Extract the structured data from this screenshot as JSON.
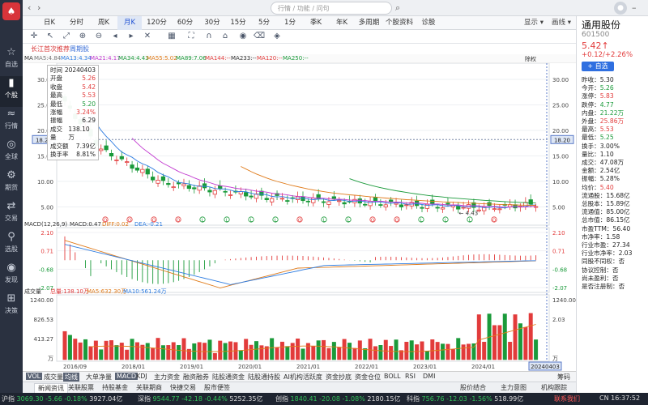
{
  "sidebar": {
    "logo_glyph": "♠",
    "items": [
      {
        "icon": "☆",
        "label": "自选"
      },
      {
        "icon": "▮",
        "label": "个股"
      },
      {
        "icon": "≈",
        "label": "行情"
      },
      {
        "icon": "◎",
        "label": "全球"
      },
      {
        "icon": "⚙",
        "label": "期货"
      },
      {
        "icon": "⇄",
        "label": "交易"
      },
      {
        "icon": "⚲",
        "label": "选股"
      },
      {
        "icon": "◉",
        "label": "发现"
      },
      {
        "icon": "⊞",
        "label": "决策"
      }
    ]
  },
  "topbar": {
    "search_placeholder": "行情 / 功能 / 问句"
  },
  "periods": [
    "日K",
    "分时",
    "周K",
    "月K",
    "120分",
    "60分",
    "30分",
    "15分",
    "5分",
    "1分",
    "季K",
    "年K",
    "多周期",
    "个股资料",
    "诊股"
  ],
  "period_active": "月K",
  "period_right": [
    "显示",
    "画线"
  ],
  "subtabs": [
    "长江首次推荐",
    "周期股"
  ],
  "ma_legend": [
    {
      "text": "MA",
      "color": "#333333"
    },
    {
      "text": "MA5:4.84",
      "color": "#777777"
    },
    {
      "text": "MA13:4.34",
      "color": "#2f7de1"
    },
    {
      "text": "MA21:4.17",
      "color": "#c23ad0"
    },
    {
      "text": "MA34:4.43",
      "color": "#1a9a3a"
    },
    {
      "text": "MA55:5.02",
      "color": "#e07b1a"
    },
    {
      "text": "MA89:7.06",
      "color": "#1a9a3a"
    },
    {
      "text": "MA144:--",
      "color": "#e23b3b"
    },
    {
      "text": "MA233:--",
      "color": "#333333"
    },
    {
      "text": "MA120:--",
      "color": "#e23b3b"
    },
    {
      "text": "MA250:--",
      "color": "#1a9a3a"
    }
  ],
  "fuquan": "除权",
  "tooltip": {
    "rows": [
      {
        "k": "时间",
        "v": "20240403",
        "c": ""
      },
      {
        "k": "开盘",
        "v": "5.26",
        "c": "red"
      },
      {
        "k": "收盘",
        "v": "5.42",
        "c": "red"
      },
      {
        "k": "最高",
        "v": "5.53",
        "c": "red"
      },
      {
        "k": "最低",
        "v": "5.20",
        "c": "grn"
      },
      {
        "k": "涨幅",
        "v": "3.24%",
        "c": "red"
      },
      {
        "k": "振幅",
        "v": "6.29",
        "c": ""
      },
      {
        "k": "成交量",
        "v": "138.10万",
        "c": ""
      },
      {
        "k": "成交额",
        "v": "7.39亿",
        "c": ""
      },
      {
        "k": "换手率",
        "v": "8.81%",
        "c": ""
      }
    ]
  },
  "chart_data": {
    "type": "candlestick",
    "price_axis_left": [
      "30.00",
      "25.00",
      "20.00",
      "15.00",
      "10.00",
      "5.00"
    ],
    "price_axis_right": [
      "30.00",
      "25.00",
      "20.00",
      "15.00",
      "10.00",
      "5.00"
    ],
    "crosshair_price": "18.20",
    "min_label": "4.43",
    "macd": {
      "label": "MACD(12,26,9)",
      "values": [
        "MACD:0.47",
        "DIFF:0.02",
        "DEA:-0.21"
      ],
      "axis": [
        "2.10",
        "0.71",
        "-0.68",
        "-2.07"
      ]
    },
    "volume": {
      "label": "成交量",
      "values": [
        "总量:138.10万",
        "MA5:632.30万",
        "MA10:561.24万"
      ],
      "axis": [
        "1240.00",
        "826.53",
        "413.27",
        "万"
      ],
      "axis_right": [
        "1240.00",
        "2.03",
        "万"
      ]
    },
    "x_dates": [
      "2016/09",
      "2018/01",
      "2019/01",
      "2020/01",
      "2021/01",
      "2022/01",
      "2023/01",
      "2024/01"
    ],
    "crosshair_date": "20240403"
  },
  "indicators": [
    "VOL",
    "成交量",
    "均线",
    "大单净量",
    "MACD",
    "KDJ",
    "主力资金",
    "融资融券",
    "陆股通资金",
    "陆股通持股",
    "AI机构活跃度",
    "资金抄底",
    "资金仓位",
    "BOLL",
    "RSI",
    "DMI",
    "筹码"
  ],
  "indicator_selected": [
    "均线",
    "MACD"
  ],
  "info_tabs": [
    "新闻资讯",
    "关联股票",
    "持股基金",
    "关联期商",
    "快捷交易",
    "股市便签"
  ],
  "info_right": [
    "股价结合",
    "主力意图",
    "机构跟踪"
  ],
  "stock": {
    "name": "通用股份",
    "code": "601500",
    "price": "5.42↑",
    "change": "+0.12/+2.26%",
    "add_label": "+ 自选",
    "fields": [
      {
        "k": "昨收",
        "v": "5.30",
        "c": ""
      },
      {
        "k": "今开",
        "v": "5.26",
        "c": "grn"
      },
      {
        "k": "涨停",
        "v": "5.83",
        "c": "red"
      },
      {
        "k": "跌停",
        "v": "4.77",
        "c": "grn"
      },
      {
        "k": "内盘",
        "v": "21.22万",
        "c": "grn"
      },
      {
        "k": "外盘",
        "v": "25.86万",
        "c": "red"
      },
      {
        "k": "最高",
        "v": "5.53",
        "c": "red"
      },
      {
        "k": "最低",
        "v": "5.25",
        "c": "grn"
      },
      {
        "k": "换手",
        "v": "3.00%",
        "c": ""
      },
      {
        "k": "量比",
        "v": "1.10",
        "c": ""
      },
      {
        "k": "成交",
        "v": "47.08万",
        "c": ""
      },
      {
        "k": "金额",
        "v": "2.54亿",
        "c": ""
      },
      {
        "k": "振幅",
        "v": "5.28%",
        "c": ""
      },
      {
        "k": "均价",
        "v": "5.40",
        "c": "red"
      },
      {
        "k": "流通股",
        "v": "15.68亿",
        "c": ""
      },
      {
        "k": "总股本",
        "v": "15.89亿",
        "c": ""
      },
      {
        "k": "流通值",
        "v": "85.00亿",
        "c": ""
      },
      {
        "k": "总市值",
        "v": "86.15亿",
        "c": ""
      },
      {
        "k": "市盈TTM",
        "v": "56.40",
        "c": ""
      },
      {
        "k": "市净率",
        "v": "1.58",
        "c": ""
      },
      {
        "k": "行业市盈",
        "v": "27.34",
        "c": ""
      },
      {
        "k": "行业市净率",
        "v": "2.03",
        "c": ""
      },
      {
        "k": "同股不同权",
        "v": "否",
        "c": ""
      },
      {
        "k": "协议控制",
        "v": "否",
        "c": ""
      },
      {
        "k": "尚未盈利",
        "v": "否",
        "c": ""
      },
      {
        "k": "是否注册制",
        "v": "否",
        "c": ""
      }
    ]
  },
  "statusbar": [
    {
      "name": "沪指",
      "val": "3069.30",
      "chg": "-5.66",
      "pct": "-0.18%",
      "amt": "3927.04亿"
    },
    {
      "name": "深指",
      "val": "9544.77",
      "chg": "-42.18",
      "pct": "-0.44%",
      "amt": "5252.35亿"
    },
    {
      "name": "创指",
      "val": "1840.41",
      "chg": "-20.08",
      "pct": "-1.08%",
      "amt": "2180.15亿"
    },
    {
      "name": "科指",
      "val": "756.76",
      "chg": "-12.03",
      "pct": "-1.56%",
      "amt": "518.99亿"
    }
  ],
  "status_right": "联系我们",
  "status_time": "CN 16:37:52"
}
